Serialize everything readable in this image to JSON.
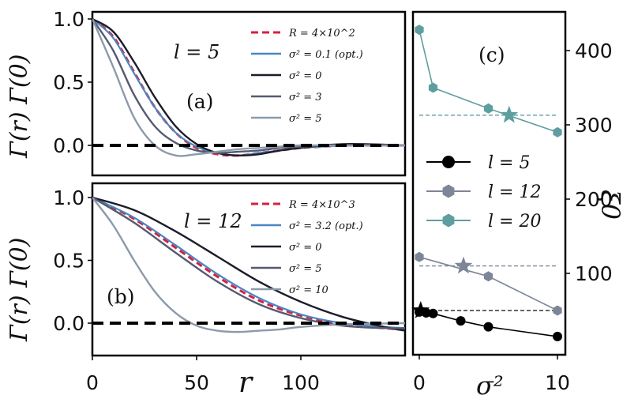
{
  "chart_data": [
    {
      "id": "a",
      "type": "line",
      "panel_label": "(a)",
      "annotation": "l = 5",
      "ylabel": "Γ(r) Γ(0)",
      "xlim": [
        0,
        150
      ],
      "ylim": [
        -0.22,
        1.05
      ],
      "yticks": [
        "1.0",
        "0.5",
        "0.0"
      ],
      "legend_position": "top-right",
      "series": [
        {
          "name": "R = 4×10^2",
          "color": "#d62040",
          "dash": "8,5",
          "width": 3,
          "x": [
            0,
            10,
            20,
            30,
            40,
            50,
            60,
            70,
            80,
            90,
            100,
            110,
            120,
            130,
            150
          ],
          "y": [
            1.0,
            0.86,
            0.58,
            0.3,
            0.1,
            -0.02,
            -0.07,
            -0.08,
            -0.06,
            -0.04,
            -0.02,
            -0.01,
            0.0,
            0.0,
            0.0
          ]
        },
        {
          "name": "σ² = 0.1 (opt.)",
          "color": "#4a86c0",
          "dash": "",
          "width": 2.2,
          "x": [
            0,
            10,
            20,
            30,
            40,
            50,
            60,
            70,
            80,
            90,
            100,
            110,
            120,
            130,
            150
          ],
          "y": [
            1.0,
            0.85,
            0.57,
            0.3,
            0.1,
            -0.01,
            -0.06,
            -0.08,
            -0.06,
            -0.04,
            -0.02,
            -0.01,
            0.0,
            0.01,
            0.0
          ]
        },
        {
          "name": "σ² = 0",
          "color": "#1c1c2a",
          "dash": "",
          "width": 2.4,
          "x": [
            0,
            10,
            20,
            30,
            40,
            50,
            60,
            70,
            80,
            90,
            100,
            110,
            120,
            130,
            150
          ],
          "y": [
            1.0,
            0.9,
            0.66,
            0.38,
            0.15,
            0.01,
            -0.06,
            -0.08,
            -0.07,
            -0.04,
            -0.02,
            0.0,
            0.01,
            0.01,
            0.0
          ]
        },
        {
          "name": "σ² = 3",
          "color": "#555a70",
          "dash": "",
          "width": 2.4,
          "x": [
            0,
            10,
            20,
            30,
            40,
            50,
            60,
            70,
            80,
            90,
            100,
            110,
            120,
            130,
            150
          ],
          "y": [
            1.0,
            0.75,
            0.4,
            0.15,
            0.02,
            -0.04,
            -0.06,
            -0.05,
            -0.04,
            -0.02,
            -0.01,
            0.0,
            0.0,
            0.0,
            0.0
          ]
        },
        {
          "name": "σ² = 5",
          "color": "#8c9aaa",
          "dash": "",
          "width": 2.4,
          "x": [
            0,
            10,
            20,
            30,
            40,
            50,
            60,
            70,
            80,
            90,
            100,
            110,
            120,
            130,
            150
          ],
          "y": [
            1.0,
            0.62,
            0.22,
            0.0,
            -0.08,
            -0.07,
            -0.05,
            -0.03,
            -0.02,
            -0.01,
            0.0,
            0.0,
            0.0,
            0.0,
            0.0
          ]
        },
        {
          "name": "",
          "color": "#000000",
          "dash": "14,8",
          "width": 4,
          "x": [
            0,
            150
          ],
          "y": [
            0,
            0
          ]
        }
      ]
    },
    {
      "id": "b",
      "type": "line",
      "panel_label": "(b)",
      "annotation": "l = 12",
      "ylabel": "Γ(r) Γ(0)",
      "xlabel": "r",
      "xlim": [
        0,
        150
      ],
      "ylim": [
        -0.22,
        1.05
      ],
      "xticks": [
        "0",
        "50",
        "100"
      ],
      "yticks": [
        "1.0",
        "0.5",
        "0.0"
      ],
      "legend_position": "top-right",
      "series": [
        {
          "name": "R = 4×10^3",
          "color": "#d62040",
          "dash": "8,5",
          "width": 3,
          "x": [
            0,
            20,
            40,
            60,
            80,
            100,
            120,
            140,
            150
          ],
          "y": [
            1.0,
            0.83,
            0.6,
            0.37,
            0.18,
            0.06,
            -0.01,
            -0.04,
            -0.05
          ]
        },
        {
          "name": "σ² = 3.2 (opt.)",
          "color": "#4a86c0",
          "dash": "",
          "width": 2.2,
          "x": [
            0,
            20,
            40,
            60,
            80,
            100,
            120,
            140,
            150
          ],
          "y": [
            1.0,
            0.84,
            0.62,
            0.39,
            0.2,
            0.07,
            0.0,
            -0.03,
            -0.04
          ]
        },
        {
          "name": "σ² = 0",
          "color": "#1c1c2a",
          "dash": "",
          "width": 2.4,
          "x": [
            0,
            20,
            40,
            60,
            80,
            100,
            120,
            140,
            150
          ],
          "y": [
            1.0,
            0.9,
            0.73,
            0.53,
            0.33,
            0.17,
            0.05,
            -0.03,
            -0.06
          ]
        },
        {
          "name": "σ² = 5",
          "color": "#555a70",
          "dash": "",
          "width": 2.4,
          "x": [
            0,
            20,
            40,
            60,
            80,
            100,
            120,
            140,
            150
          ],
          "y": [
            1.0,
            0.8,
            0.56,
            0.33,
            0.15,
            0.04,
            -0.02,
            -0.04,
            -0.04
          ]
        },
        {
          "name": "σ² = 10",
          "color": "#8c9aaa",
          "dash": "",
          "width": 2.4,
          "x": [
            0,
            10,
            20,
            30,
            40,
            50,
            60,
            70,
            80,
            90,
            100,
            120,
            150
          ],
          "y": [
            1.0,
            0.78,
            0.5,
            0.25,
            0.08,
            -0.02,
            -0.06,
            -0.07,
            -0.06,
            -0.05,
            -0.03,
            -0.01,
            0.0
          ]
        },
        {
          "name": "",
          "color": "#000000",
          "dash": "14,8",
          "width": 4,
          "x": [
            0,
            150
          ],
          "y": [
            0,
            0
          ]
        }
      ]
    },
    {
      "id": "c",
      "type": "line",
      "panel_label": "(c)",
      "xlabel": "σ²",
      "ylabel": "ξ0",
      "xlim": [
        -0.5,
        10.5
      ],
      "ylim": [
        0,
        450
      ],
      "xticks": [
        "0",
        "10"
      ],
      "yticks": [
        "100",
        "200",
        "300",
        "400"
      ],
      "legend_position": "center-left",
      "series": [
        {
          "name": "l = 5",
          "color": "#000000",
          "marker": "circle",
          "x": [
            0,
            0.5,
            1,
            3,
            5,
            10
          ],
          "y": [
            48,
            47,
            46,
            36,
            28,
            15
          ],
          "hline": 50,
          "star": [
            0.1,
            50
          ]
        },
        {
          "name": "l = 12",
          "color": "#7d8698",
          "marker": "hexagon",
          "x": [
            0,
            5,
            10
          ],
          "y": [
            122,
            96,
            50
          ],
          "hline": 110,
          "star": [
            3.2,
            110
          ]
        },
        {
          "name": "l = 20",
          "color": "#5e9ea0",
          "marker": "hexagon",
          "x": [
            0,
            1,
            5,
            10
          ],
          "y": [
            428,
            350,
            322,
            290
          ],
          "hline": 313,
          "star": [
            6.5,
            313
          ]
        }
      ]
    }
  ],
  "ui": {
    "panel_a_label": "(a)",
    "panel_b_label": "(b)",
    "panel_c_label": "(c)",
    "panel_a_l": "l = 5",
    "panel_b_l": "l = 12",
    "ylabel_left": "Γ(r) Γ(0)",
    "xlabel_left": "r",
    "xlabel_right": "σ²",
    "ylabel_right": "ξ0"
  }
}
